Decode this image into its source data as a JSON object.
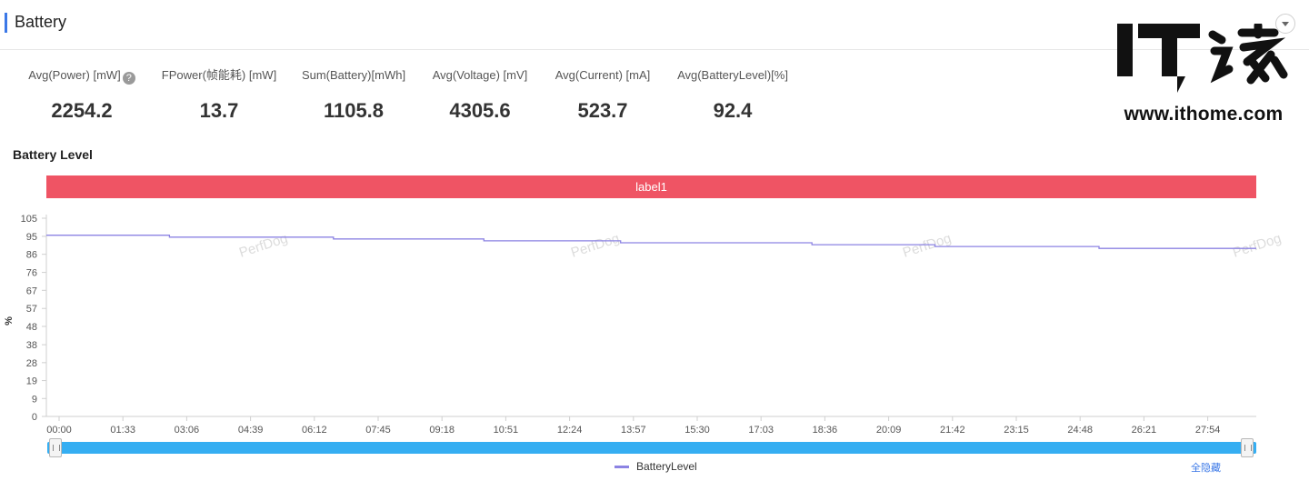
{
  "header": {
    "title": "Battery",
    "logo_text": "IT之家",
    "logo_url": "www.ithome.com"
  },
  "metrics": [
    {
      "label": "Avg(Power) [mW]",
      "value": "2254.2",
      "has_help": true
    },
    {
      "label": "FPower(帧能耗) [mW]",
      "value": "13.7"
    },
    {
      "label": "Sum(Battery)[mWh]",
      "value": "1105.8"
    },
    {
      "label": "Avg(Voltage) [mV]",
      "value": "4305.6"
    },
    {
      "label": "Avg(Current) [mA]",
      "value": "523.7"
    },
    {
      "label": "Avg(BatteryLevel)[%]",
      "value": "92.4"
    }
  ],
  "help_glyph": "?",
  "chart_data": {
    "type": "line",
    "title": "Battery Level",
    "band_label": "label1",
    "ylabel": "%",
    "ylim": [
      0,
      105
    ],
    "y_ticks": [
      "0",
      "9",
      "19",
      "28",
      "38",
      "48",
      "57",
      "67",
      "76",
      "86",
      "95",
      "105"
    ],
    "x_ticks": [
      "00:00",
      "01:33",
      "03:06",
      "04:39",
      "06:12",
      "07:45",
      "09:18",
      "10:51",
      "12:24",
      "13:57",
      "15:30",
      "17:03",
      "18:36",
      "20:09",
      "21:42",
      "23:15",
      "24:48",
      "26:21",
      "27:54"
    ],
    "watermark": "PerfDog",
    "series": [
      {
        "name": "BatteryLevel",
        "color": "#8c83e3",
        "points": [
          [
            "00:00",
            96
          ],
          [
            "03:00",
            96
          ],
          [
            "03:00",
            95
          ],
          [
            "07:00",
            95
          ],
          [
            "07:00",
            94
          ],
          [
            "10:40",
            94
          ],
          [
            "10:40",
            93
          ],
          [
            "14:00",
            93
          ],
          [
            "14:00",
            92
          ],
          [
            "18:40",
            92
          ],
          [
            "18:40",
            91
          ],
          [
            "21:40",
            91
          ],
          [
            "21:40",
            90
          ],
          [
            "25:40",
            90
          ],
          [
            "25:40",
            89
          ],
          [
            "29:30",
            89
          ]
        ]
      }
    ],
    "grid": false,
    "legend": "bottom"
  },
  "slider": {
    "range": [
      0,
      1
    ]
  },
  "legend_toggle": "全隐藏"
}
